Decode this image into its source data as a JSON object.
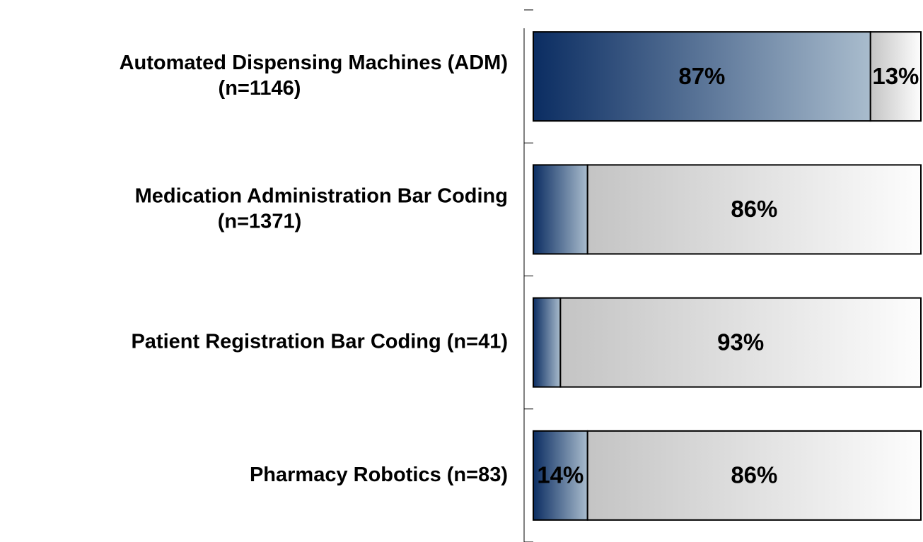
{
  "chart_data": {
    "type": "stacked_barh",
    "categories": [
      [
        "Automated Dispensing Machines (ADM)",
        "(n=1146)"
      ],
      [
        "Medication Administration Bar Coding",
        "(n=1371)"
      ],
      [
        "Patient Registration Bar Coding (n=41)"
      ],
      [
        "Pharmacy Robotics (n=83)"
      ]
    ],
    "series": [
      {
        "color": "#0b2d62",
        "values": [
          87,
          14,
          7,
          14
        ],
        "value_labels": [
          "87%",
          null,
          null,
          "14%"
        ]
      },
      {
        "color": "#c4c4c4",
        "values": [
          13,
          86,
          93,
          86
        ],
        "value_labels": [
          "13%",
          "86%",
          "93%",
          "86%"
        ]
      }
    ],
    "xlim": [
      0,
      100
    ]
  }
}
